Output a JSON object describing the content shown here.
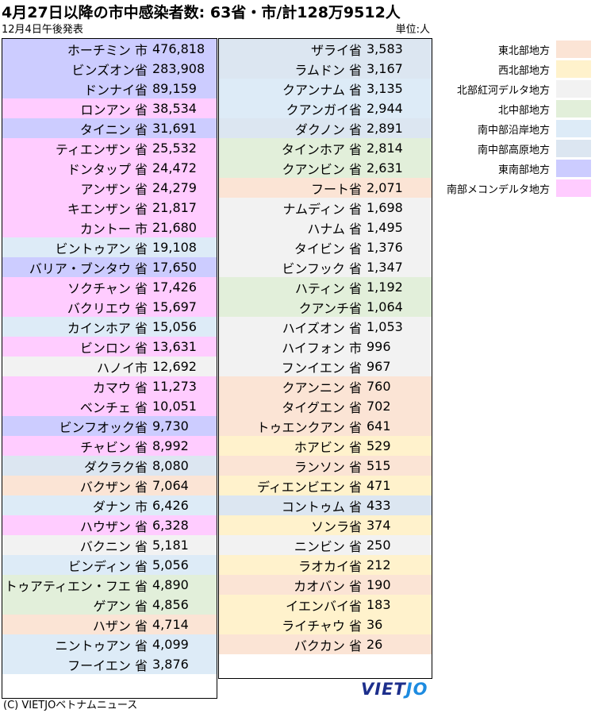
{
  "title": "4月27日以降の市中感染者数: 63省・市/計128万9512人",
  "subtitle": "12月4日午後発表",
  "unit": "単位:人",
  "colors": {
    "東北部地方": "#fbe4d5",
    "西北部地方": "#fff2cc",
    "北部紅河デルタ地方": "#f2f2f2",
    "北中部地方": "#e2efda",
    "南中部沿岸地方": "#ddebf7",
    "南中部高原地方": "#dce6f1",
    "東南部地方": "#ccccff",
    "南部メコンデルタ地方": "#ffccff"
  },
  "legend": [
    {
      "label": "東北部地方",
      "color": "#fbe4d5"
    },
    {
      "label": "西北部地方",
      "color": "#fff2cc"
    },
    {
      "label": "北部紅河デルタ地方",
      "color": "#f2f2f2"
    },
    {
      "label": "北中部地方",
      "color": "#e2efda"
    },
    {
      "label": "南中部沿岸地方",
      "color": "#ddebf7"
    },
    {
      "label": "南中部高原地方",
      "color": "#dce6f1"
    },
    {
      "label": "東南部地方",
      "color": "#ccccff"
    },
    {
      "label": "南部メコンデルタ地方",
      "color": "#ffccff"
    }
  ],
  "left_rows": [
    {
      "name": "ホーチミン 市",
      "value": "476,818",
      "region": "東南部地方"
    },
    {
      "name": "ビンズオン省",
      "value": "283,908",
      "region": "東南部地方"
    },
    {
      "name": "ドンナイ省",
      "value": "89,159",
      "region": "東南部地方"
    },
    {
      "name": "ロンアン 省",
      "value": "38,534",
      "region": "南部メコンデルタ地方"
    },
    {
      "name": "タイニン 省",
      "value": "31,691",
      "region": "東南部地方"
    },
    {
      "name": "ティエンザン 省",
      "value": "25,532",
      "region": "南部メコンデルタ地方"
    },
    {
      "name": "ドンタップ 省",
      "value": "24,472",
      "region": "南部メコンデルタ地方"
    },
    {
      "name": "アンザン 省",
      "value": "24,279",
      "region": "南部メコンデルタ地方"
    },
    {
      "name": "キエンザン 省",
      "value": "21,817",
      "region": "南部メコンデルタ地方"
    },
    {
      "name": "カントー 市",
      "value": "21,680",
      "region": "南部メコンデルタ地方"
    },
    {
      "name": "ビントゥアン 省",
      "value": "19,108",
      "region": "南中部沿岸地方"
    },
    {
      "name": "バリア・ブンタウ 省",
      "value": "17,650",
      "region": "東南部地方"
    },
    {
      "name": "ソクチャン 省",
      "value": "17,426",
      "region": "南部メコンデルタ地方"
    },
    {
      "name": "バクリエウ 省",
      "value": "15,697",
      "region": "南部メコンデルタ地方"
    },
    {
      "name": "カインホア 省",
      "value": "15,056",
      "region": "南中部沿岸地方"
    },
    {
      "name": "ビンロン 省",
      "value": "13,631",
      "region": "南部メコンデルタ地方"
    },
    {
      "name": "ハノイ市",
      "value": "12,692",
      "region": "北部紅河デルタ地方"
    },
    {
      "name": "カマウ 省",
      "value": "11,273",
      "region": "南部メコンデルタ地方"
    },
    {
      "name": "ベンチェ 省",
      "value": "10,051",
      "region": "南部メコンデルタ地方"
    },
    {
      "name": "ビンフオック省",
      "value": "9,730",
      "region": "東南部地方"
    },
    {
      "name": "チャビン 省",
      "value": "8,992",
      "region": "南部メコンデルタ地方"
    },
    {
      "name": "ダクラク省",
      "value": "8,080",
      "region": "南中部高原地方"
    },
    {
      "name": "バクザン 省",
      "value": "7,064",
      "region": "東北部地方"
    },
    {
      "name": "ダナン 市",
      "value": "6,426",
      "region": "南中部沿岸地方"
    },
    {
      "name": "ハウザン 省",
      "value": "6,328",
      "region": "南部メコンデルタ地方"
    },
    {
      "name": "バクニン 省",
      "value": "5,181",
      "region": "北部紅河デルタ地方"
    },
    {
      "name": "ビンディン 省",
      "value": "5,056",
      "region": "南中部沿岸地方"
    },
    {
      "name": "トゥアティエン・フエ 省",
      "value": "4,890",
      "region": "北中部地方"
    },
    {
      "name": "ゲアン 省",
      "value": "4,856",
      "region": "北中部地方"
    },
    {
      "name": "ハザン 省",
      "value": "4,714",
      "region": "東北部地方"
    },
    {
      "name": "ニントゥアン 省",
      "value": "4,099",
      "region": "南中部沿岸地方"
    },
    {
      "name": "フーイエン 省",
      "value": "3,876",
      "region": "南中部沿岸地方"
    }
  ],
  "right_rows": [
    {
      "name": "ザライ省",
      "value": "3,583",
      "region": "南中部高原地方"
    },
    {
      "name": "ラムドン 省",
      "value": "3,167",
      "region": "南中部高原地方"
    },
    {
      "name": "クアンナム 省",
      "value": "3,135",
      "region": "南中部沿岸地方"
    },
    {
      "name": "クアンガイ省",
      "value": "2,944",
      "region": "南中部沿岸地方"
    },
    {
      "name": "ダクノン 省",
      "value": "2,891",
      "region": "南中部高原地方"
    },
    {
      "name": "タインホア 省",
      "value": "2,814",
      "region": "北中部地方"
    },
    {
      "name": "クアンビン 省",
      "value": "2,631",
      "region": "北中部地方"
    },
    {
      "name": "フート省",
      "value": "2,071",
      "region": "東北部地方"
    },
    {
      "name": "ナムディン 省",
      "value": "1,698",
      "region": "北部紅河デルタ地方"
    },
    {
      "name": "ハナム 省",
      "value": "1,495",
      "region": "北部紅河デルタ地方"
    },
    {
      "name": "タイビン 省",
      "value": "1,376",
      "region": "北部紅河デルタ地方"
    },
    {
      "name": "ビンフック 省",
      "value": "1,347",
      "region": "北部紅河デルタ地方"
    },
    {
      "name": "ハティン 省",
      "value": "1,192",
      "region": "北中部地方"
    },
    {
      "name": "クアンチ省",
      "value": "1,064",
      "region": "北中部地方"
    },
    {
      "name": "ハイズオン 省",
      "value": "1,053",
      "region": "北部紅河デルタ地方"
    },
    {
      "name": "ハイフォン 市",
      "value": "996",
      "region": "北部紅河デルタ地方"
    },
    {
      "name": "フンイエン 省",
      "value": "967",
      "region": "北部紅河デルタ地方"
    },
    {
      "name": "クアンニン 省",
      "value": "760",
      "region": "東北部地方"
    },
    {
      "name": "タイグエン 省",
      "value": "702",
      "region": "東北部地方"
    },
    {
      "name": "トゥエンクアン 省",
      "value": "641",
      "region": "東北部地方"
    },
    {
      "name": "ホアビン 省",
      "value": "529",
      "region": "西北部地方"
    },
    {
      "name": "ランソン 省",
      "value": "515",
      "region": "東北部地方"
    },
    {
      "name": "ディエンビエン 省",
      "value": "471",
      "region": "西北部地方"
    },
    {
      "name": "コントゥム 省",
      "value": "433",
      "region": "南中部高原地方"
    },
    {
      "name": "ソンラ省",
      "value": "374",
      "region": "西北部地方"
    },
    {
      "name": "ニンビン 省",
      "value": "250",
      "region": "北部紅河デルタ地方"
    },
    {
      "name": "ラオカイ省",
      "value": "212",
      "region": "西北部地方"
    },
    {
      "name": "カオバン 省",
      "value": "190",
      "region": "東北部地方"
    },
    {
      "name": "イエンバイ省",
      "value": "183",
      "region": "西北部地方"
    },
    {
      "name": "ライチャウ 省",
      "value": "36",
      "region": "西北部地方"
    },
    {
      "name": "バクカン 省",
      "value": "26",
      "region": "東北部地方"
    }
  ],
  "logo": {
    "part1": "VIET",
    "part2": "JO"
  },
  "footer": "(C) VIETJOベトナムニュース"
}
